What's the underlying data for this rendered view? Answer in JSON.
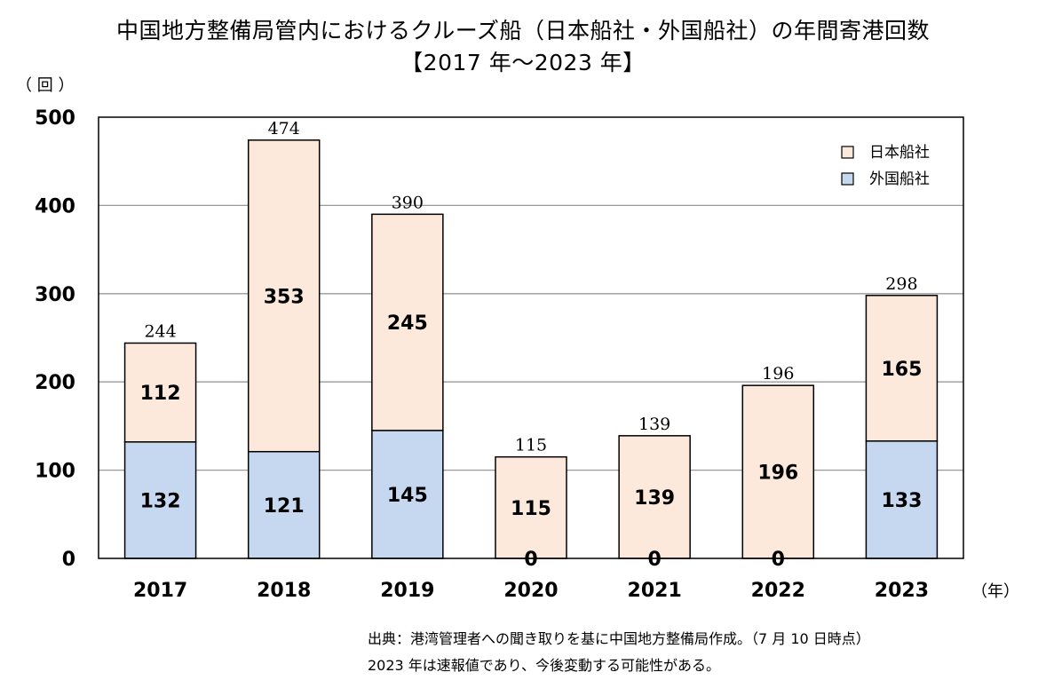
{
  "chart_data": {
    "type": "bar",
    "stacked": true,
    "title": "中国地方整備局管内におけるクルーズ船（日本船社・外国船社）の年間寄港回数",
    "subtitle": "【2017 年～2023 年】",
    "ylabel": "（ 回 ）",
    "xlabel": "（年）",
    "ylim": [
      0,
      500
    ],
    "yticks": [
      0,
      100,
      200,
      300,
      400,
      500
    ],
    "grid": true,
    "legend_position": "top-right",
    "categories": [
      "2017",
      "2018",
      "2019",
      "2020",
      "2021",
      "2022",
      "2023"
    ],
    "series": [
      {
        "name": "外国船社",
        "color": "#c5d8f0",
        "values": [
          132,
          121,
          145,
          0,
          0,
          0,
          133
        ]
      },
      {
        "name": "日本船社",
        "color": "#fce9dc",
        "values": [
          112,
          353,
          245,
          115,
          139,
          196,
          165
        ]
      }
    ],
    "totals": [
      244,
      474,
      390,
      115,
      139,
      196,
      298
    ]
  },
  "source_note": {
    "line1": "出典：港湾管理者への聞き取りを基に中国地方整備局作成。（7 月 10 日時点）",
    "line2": "2023 年は速報値であり、今後変動する可能性がある。"
  }
}
